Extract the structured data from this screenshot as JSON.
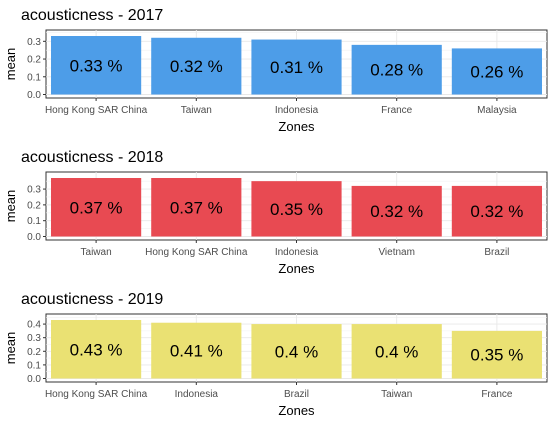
{
  "chart_data": [
    {
      "type": "bar",
      "title": "acousticness - 2017",
      "xlabel": "Zones",
      "ylabel": "mean",
      "categories": [
        "Hong Kong SAR China",
        "Taiwan",
        "Indonesia",
        "France",
        "Malaysia"
      ],
      "values": [
        0.33,
        0.32,
        0.31,
        0.28,
        0.26
      ],
      "labels": [
        "0.33 %",
        "0.32 %",
        "0.31 %",
        "0.28 %",
        "0.26 %"
      ],
      "yticks": [
        "0.0",
        "0.1",
        "0.2",
        "0.3"
      ],
      "ylim": [
        0,
        0.33
      ],
      "color": "#4D9DE8",
      "grid": true
    },
    {
      "type": "bar",
      "title": "acousticness - 2018",
      "xlabel": "Zones",
      "ylabel": "mean",
      "categories": [
        "Taiwan",
        "Hong Kong SAR China",
        "Indonesia",
        "Vietnam",
        "Brazil"
      ],
      "values": [
        0.37,
        0.37,
        0.35,
        0.32,
        0.32
      ],
      "labels": [
        "0.37 %",
        "0.37 %",
        "0.35 %",
        "0.32 %",
        "0.32 %"
      ],
      "yticks": [
        "0.0",
        "0.1",
        "0.2",
        "0.3"
      ],
      "ylim": [
        0,
        0.37
      ],
      "color": "#E84A52",
      "grid": true
    },
    {
      "type": "bar",
      "title": "acousticness - 2019",
      "xlabel": "Zones",
      "ylabel": "mean",
      "categories": [
        "Hong Kong SAR China",
        "Indonesia",
        "Brazil",
        "Taiwan",
        "France"
      ],
      "values": [
        0.43,
        0.41,
        0.4,
        0.4,
        0.35
      ],
      "labels": [
        "0.43 %",
        "0.41 %",
        "0.4 %",
        "0.4 %",
        "0.35 %"
      ],
      "yticks": [
        "0.0",
        "0.1",
        "0.2",
        "0.3",
        "0.4"
      ],
      "ylim": [
        0,
        0.43
      ],
      "color": "#EAE173",
      "grid": true
    }
  ]
}
